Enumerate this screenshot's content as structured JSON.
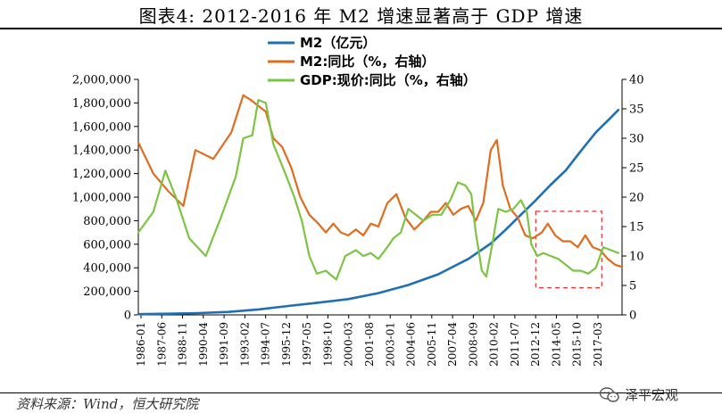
{
  "title": "图表4:   2012-2016 年 M2 增速显著高于 GDP 增速",
  "source": "资料来源：Wind，恒大研究院",
  "brand": "泽平宏观",
  "brand_icon": "wechat-icon",
  "chart_data": {
    "type": "line",
    "title": "图表4:   2012-2016 年 M2 增速显著高于 GDP 增速",
    "xlabel": "",
    "ylabel_left": "",
    "ylabel_right": "",
    "legend_position": "top-center",
    "grid": false,
    "x_range": [
      1986.0,
      2018.25
    ],
    "ylim_left": [
      0,
      2000000
    ],
    "ylim_right": [
      0,
      40
    ],
    "x_tick_labels": [
      "1986-01",
      "1987-06",
      "1988-11",
      "1990-04",
      "1991-09",
      "1993-02",
      "1994-07",
      "1995-12",
      "1997-05",
      "1998-10",
      "2000-03",
      "2001-08",
      "2003-01",
      "2004-06",
      "2005-11",
      "2007-04",
      "2008-09",
      "2010-02",
      "2011-07",
      "2012-12",
      "2014-05",
      "2015-10",
      "2017-03"
    ],
    "y_left_tick_labels": [
      "0",
      "200,000",
      "400,000",
      "600,000",
      "800,000",
      "1,000,000",
      "1,200,000",
      "1,400,000",
      "1,600,000",
      "1,800,000",
      "2,000,000"
    ],
    "y_right_tick_labels": [
      "0",
      "5",
      "10",
      "15",
      "20",
      "25",
      "30",
      "35",
      "40"
    ],
    "annotation": {
      "type": "dashed-rect",
      "x": [
        2012.5,
        2016.9
      ],
      "y_left": [
        230000,
        880000
      ],
      "color": "#E0302F"
    },
    "series": [
      {
        "name": "M2（亿元）",
        "axis": "left",
        "color": "#1F6FB2",
        "points": [
          [
            1986.0,
            6000
          ],
          [
            1988.0,
            10000
          ],
          [
            1990.0,
            15000
          ],
          [
            1992.0,
            25000
          ],
          [
            1994.0,
            46000
          ],
          [
            1996.0,
            76000
          ],
          [
            1998.0,
            104000
          ],
          [
            2000.0,
            134000
          ],
          [
            2002.0,
            185000
          ],
          [
            2004.0,
            254000
          ],
          [
            2006.0,
            345000
          ],
          [
            2008.0,
            475000
          ],
          [
            2009.5,
            606000
          ],
          [
            2010.5,
            725000
          ],
          [
            2011.5,
            850000
          ],
          [
            2012.5,
            974000
          ],
          [
            2013.5,
            1106000
          ],
          [
            2014.5,
            1228000
          ],
          [
            2015.5,
            1392000
          ],
          [
            2016.5,
            1550000
          ],
          [
            2017.5,
            1676000
          ],
          [
            2018.0,
            1740000
          ]
        ]
      },
      {
        "name": "M2:同比（%，右轴）",
        "axis": "right",
        "color": "#E06C1E",
        "points": [
          [
            1986.0,
            29.3
          ],
          [
            1987.0,
            24.0
          ],
          [
            1988.0,
            21.0
          ],
          [
            1989.0,
            18.5
          ],
          [
            1989.8,
            28.0
          ],
          [
            1991.0,
            26.5
          ],
          [
            1992.2,
            31.0
          ],
          [
            1993.0,
            37.3
          ],
          [
            1993.5,
            36.5
          ],
          [
            1994.5,
            34.5
          ],
          [
            1995.0,
            30.0
          ],
          [
            1995.6,
            28.5
          ],
          [
            1996.2,
            25.0
          ],
          [
            1996.8,
            20.0
          ],
          [
            1997.4,
            17.0
          ],
          [
            1998.0,
            15.5
          ],
          [
            1998.5,
            14.0
          ],
          [
            1999.0,
            15.5
          ],
          [
            1999.5,
            14.0
          ],
          [
            2000.0,
            13.5
          ],
          [
            2000.5,
            14.5
          ],
          [
            2001.0,
            13.5
          ],
          [
            2001.5,
            15.5
          ],
          [
            2002.0,
            15.0
          ],
          [
            2002.6,
            19.0
          ],
          [
            2003.2,
            20.5
          ],
          [
            2003.8,
            16.5
          ],
          [
            2004.4,
            14.5
          ],
          [
            2005.0,
            16.0
          ],
          [
            2005.5,
            17.5
          ],
          [
            2006.0,
            17.5
          ],
          [
            2006.5,
            19.0
          ],
          [
            2007.0,
            17.0
          ],
          [
            2007.5,
            18.0
          ],
          [
            2008.0,
            18.5
          ],
          [
            2008.5,
            16.0
          ],
          [
            2009.0,
            19.0
          ],
          [
            2009.5,
            28.0
          ],
          [
            2009.9,
            29.7
          ],
          [
            2010.3,
            22.0
          ],
          [
            2010.8,
            18.0
          ],
          [
            2011.3,
            16.5
          ],
          [
            2011.8,
            13.5
          ],
          [
            2012.3,
            13.0
          ],
          [
            2012.9,
            14.0
          ],
          [
            2013.3,
            15.5
          ],
          [
            2013.8,
            13.5
          ],
          [
            2014.3,
            12.5
          ],
          [
            2014.8,
            12.5
          ],
          [
            2015.3,
            11.5
          ],
          [
            2015.8,
            13.5
          ],
          [
            2016.3,
            11.5
          ],
          [
            2016.8,
            11.0
          ],
          [
            2017.3,
            9.5
          ],
          [
            2017.8,
            8.5
          ],
          [
            2018.2,
            8.2
          ]
        ]
      },
      {
        "name": "GDP:现价:同比（%，右轴）",
        "axis": "right",
        "color": "#7CC443",
        "points": [
          [
            1986.0,
            14.0
          ],
          [
            1987.0,
            17.5
          ],
          [
            1987.8,
            24.5
          ],
          [
            1988.5,
            20.0
          ],
          [
            1989.4,
            13.0
          ],
          [
            1990.5,
            10.0
          ],
          [
            1991.5,
            16.5
          ],
          [
            1992.5,
            23.5
          ],
          [
            1993.0,
            30.0
          ],
          [
            1993.6,
            30.5
          ],
          [
            1994.0,
            36.5
          ],
          [
            1994.5,
            36.0
          ],
          [
            1995.0,
            29.0
          ],
          [
            1995.8,
            24.0
          ],
          [
            1996.4,
            20.0
          ],
          [
            1996.9,
            16.0
          ],
          [
            1997.4,
            10.0
          ],
          [
            1997.9,
            7.0
          ],
          [
            1998.5,
            7.5
          ],
          [
            1999.2,
            6.0
          ],
          [
            1999.8,
            10.0
          ],
          [
            2000.5,
            11.0
          ],
          [
            2001.0,
            10.0
          ],
          [
            2001.5,
            10.5
          ],
          [
            2002.0,
            9.5
          ],
          [
            2002.6,
            11.5
          ],
          [
            2003.0,
            13.0
          ],
          [
            2003.5,
            14.0
          ],
          [
            2004.0,
            18.0
          ],
          [
            2004.5,
            17.0
          ],
          [
            2005.0,
            16.0
          ],
          [
            2005.6,
            17.0
          ],
          [
            2006.2,
            17.0
          ],
          [
            2006.8,
            19.5
          ],
          [
            2007.3,
            22.5
          ],
          [
            2007.8,
            22.0
          ],
          [
            2008.2,
            20.5
          ],
          [
            2008.5,
            14.0
          ],
          [
            2008.9,
            7.5
          ],
          [
            2009.2,
            6.5
          ],
          [
            2009.6,
            12.0
          ],
          [
            2010.0,
            18.0
          ],
          [
            2010.5,
            17.5
          ],
          [
            2011.0,
            18.0
          ],
          [
            2011.5,
            19.5
          ],
          [
            2011.9,
            17.5
          ],
          [
            2012.2,
            12.0
          ],
          [
            2012.6,
            10.0
          ],
          [
            2013.0,
            10.5
          ],
          [
            2013.5,
            10.0
          ],
          [
            2014.0,
            9.5
          ],
          [
            2014.5,
            8.5
          ],
          [
            2015.0,
            7.5
          ],
          [
            2015.5,
            7.5
          ],
          [
            2016.0,
            7.0
          ],
          [
            2016.5,
            8.0
          ],
          [
            2017.0,
            11.5
          ],
          [
            2017.5,
            11.0
          ],
          [
            2018.0,
            10.5
          ]
        ]
      }
    ]
  }
}
